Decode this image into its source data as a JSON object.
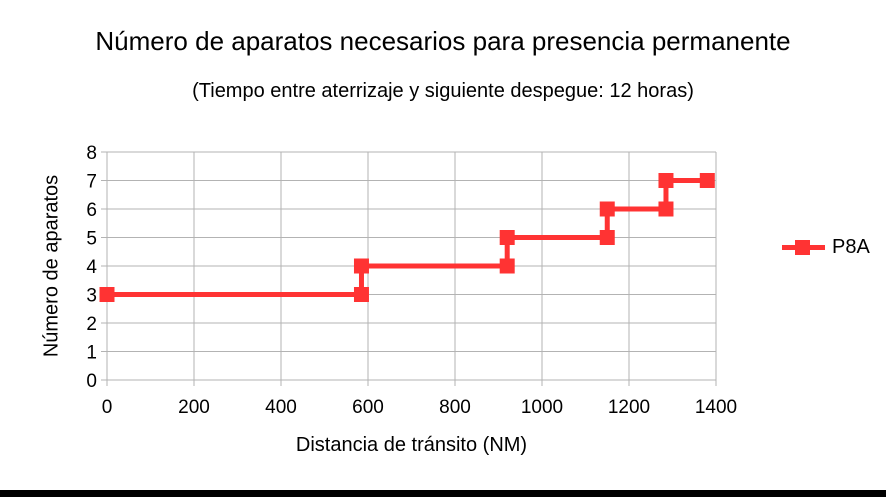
{
  "page": {
    "background": "#ffffff",
    "bottom_bar_color": "#000000"
  },
  "chart_data": {
    "type": "line",
    "title": "Número de aparatos necesarios para presencia permanente",
    "subtitle": "(Tiempo entre aterrizaje y siguiente despegue: 12 horas)",
    "xlabel": "Distancia de tránsito (NM)",
    "ylabel": "Número de aparatos",
    "xlim": [
      0,
      1400
    ],
    "ylim": [
      0,
      8
    ],
    "x_ticks": [
      0,
      200,
      400,
      600,
      800,
      1000,
      1200,
      1400
    ],
    "y_ticks": [
      0,
      1,
      2,
      3,
      4,
      5,
      6,
      7,
      8
    ],
    "grid": true,
    "grid_color": "#b3b3b3",
    "legend_position": "right",
    "series": [
      {
        "name": "P8A",
        "color": "#ff3333",
        "marker": "square",
        "marker_size": 15,
        "line_width": 5,
        "points": [
          [
            0,
            3
          ],
          [
            585,
            3
          ],
          [
            585,
            4
          ],
          [
            920,
            4
          ],
          [
            920,
            5
          ],
          [
            1150,
            5
          ],
          [
            1150,
            6
          ],
          [
            1285,
            6
          ],
          [
            1285,
            7
          ],
          [
            1380,
            7
          ]
        ]
      }
    ]
  }
}
